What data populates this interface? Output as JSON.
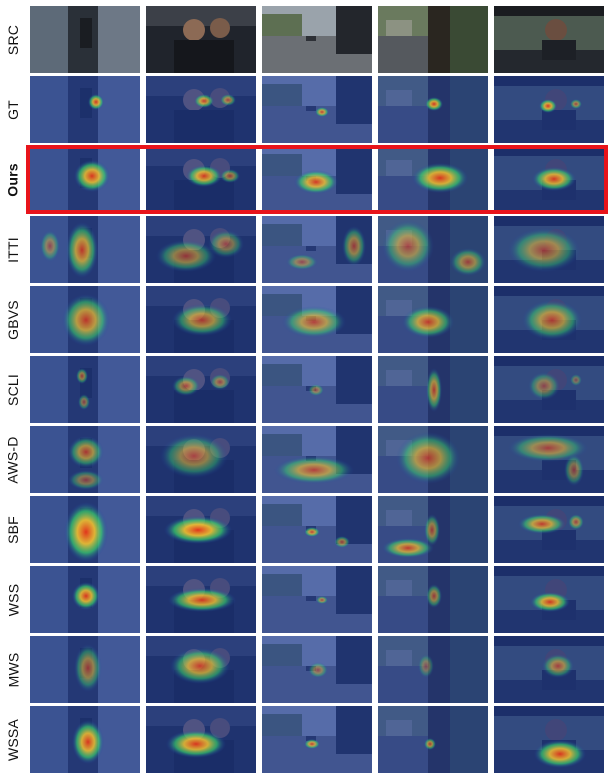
{
  "figure": {
    "rows": [
      {
        "label": "SRC",
        "bold": false,
        "kind": "src"
      },
      {
        "label": "GT",
        "bold": false,
        "kind": "gt"
      },
      {
        "label": "Ours",
        "bold": true,
        "kind": "ours",
        "highlighted": true
      },
      {
        "label": "ITTI",
        "bold": false,
        "kind": "itti"
      },
      {
        "label": "GBVS",
        "bold": false,
        "kind": "gbvs"
      },
      {
        "label": "SCLI",
        "bold": false,
        "kind": "scli"
      },
      {
        "label": "AWS-D",
        "bold": false,
        "kind": "awsd"
      },
      {
        "label": "SBF",
        "bold": false,
        "kind": "sbf"
      },
      {
        "label": "WSS",
        "bold": false,
        "kind": "wss"
      },
      {
        "label": "MWS",
        "bold": false,
        "kind": "mws"
      },
      {
        "label": "WSSA",
        "bold": false,
        "kind": "wssa"
      }
    ],
    "columns": [
      {
        "scene": "alley"
      },
      {
        "scene": "car-interior"
      },
      {
        "scene": "street-car"
      },
      {
        "scene": "tree-street"
      },
      {
        "scene": "driver"
      }
    ],
    "colors": {
      "highlight": "#e8141b",
      "heat_low": "#1f3fa8",
      "heat_mid": "#39d36b",
      "heat_high": "#e1351c"
    }
  }
}
